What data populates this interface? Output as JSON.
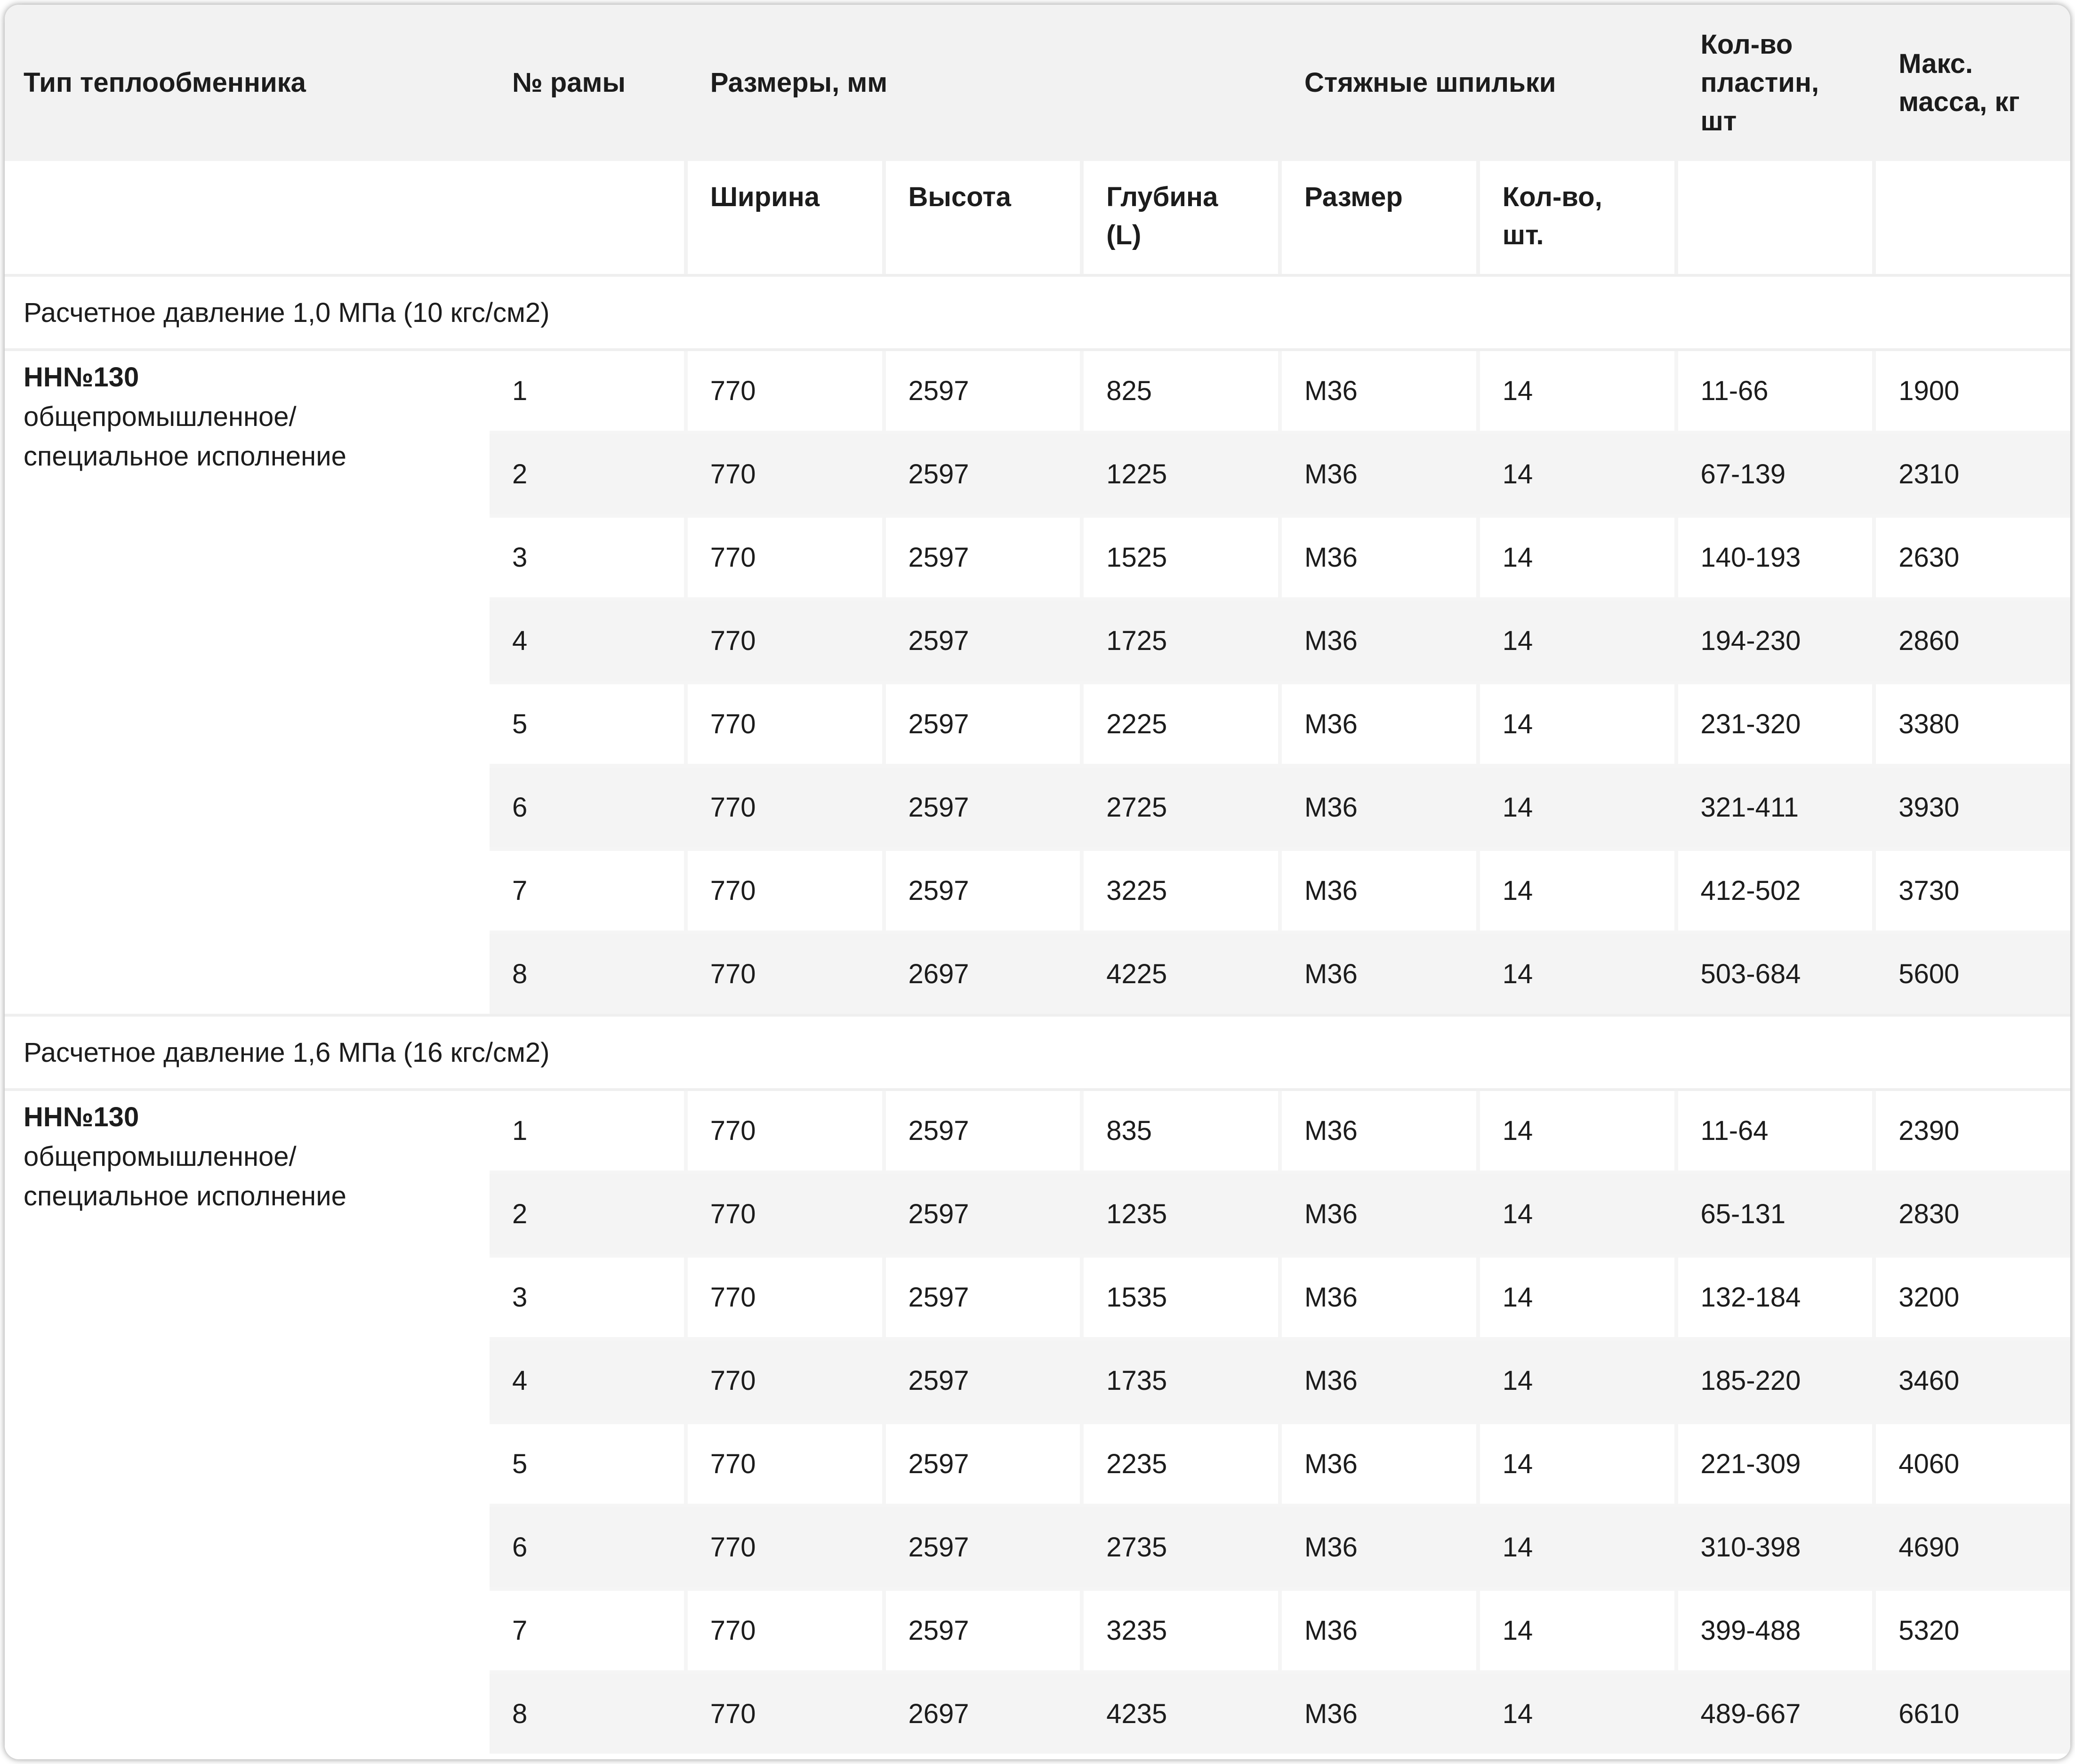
{
  "table": {
    "columns": {
      "type": "Тип теплообменника",
      "frame": "№ рамы",
      "dimensions_group": "Размеры, мм",
      "dim_width": "Ширина",
      "dim_height": "Высота",
      "dim_depth": "Глубина (L)",
      "studs_group": "Стяжные шпильки",
      "stud_size": "Размер",
      "stud_qty": "Кол-во, шт.",
      "plates": "Кол-во пластин, шт",
      "mass": "Макс. масса, кг"
    },
    "sections": [
      {
        "title": "Расчетное давление 1,0 МПа (10 кгс/см2)",
        "type_name": "НН№130",
        "type_description": "общепромышленное/\nспециальное исполнение",
        "rows": [
          [
            "1",
            "770",
            "2597",
            "825",
            "М36",
            "14",
            "11-66",
            "1900"
          ],
          [
            "2",
            "770",
            "2597",
            "1225",
            "М36",
            "14",
            "67-139",
            "2310"
          ],
          [
            "3",
            "770",
            "2597",
            "1525",
            "М36",
            "14",
            "140-193",
            "2630"
          ],
          [
            "4",
            "770",
            "2597",
            "1725",
            "М36",
            "14",
            "194-230",
            "2860"
          ],
          [
            "5",
            "770",
            "2597",
            "2225",
            "М36",
            "14",
            "231-320",
            "3380"
          ],
          [
            "6",
            "770",
            "2597",
            "2725",
            "М36",
            "14",
            "321-411",
            "3930"
          ],
          [
            "7",
            "770",
            "2597",
            "3225",
            "М36",
            "14",
            "412-502",
            "3730"
          ],
          [
            "8",
            "770",
            "2697",
            "4225",
            "М36",
            "14",
            "503-684",
            "5600"
          ]
        ]
      },
      {
        "title": "Расчетное давление 1,6 МПа (16 кгс/см2)",
        "type_name": "НН№130",
        "type_description": " общепромышленное/\nспециальное исполнение",
        "rows": [
          [
            "1",
            "770",
            "2597",
            "835",
            "М36",
            "14",
            "11-64",
            "2390"
          ],
          [
            "2",
            "770",
            "2597",
            "1235",
            "М36",
            "14",
            "65-131",
            "2830"
          ],
          [
            "3",
            "770",
            "2597",
            "1535",
            "М36",
            "14",
            "132-184",
            "3200"
          ],
          [
            "4",
            "770",
            "2597",
            "1735",
            "М36",
            "14",
            "185-220",
            "3460"
          ],
          [
            "5",
            "770",
            "2597",
            "2235",
            "М36",
            "14",
            "221-309",
            "4060"
          ],
          [
            "6",
            "770",
            "2597",
            "2735",
            "М36",
            "14",
            "310-398",
            "4690"
          ],
          [
            "7",
            "770",
            "2597",
            "3235",
            "М36",
            "14",
            "399-488",
            "5320"
          ],
          [
            "8",
            "770",
            "2697",
            "4235",
            "М36",
            "14",
            "489-667",
            "6610"
          ]
        ]
      }
    ],
    "colors": {
      "header_band": "#f2f2f2",
      "even_row": "#f4f4f4",
      "gap": "#f5f5f5",
      "separator": "#efefef"
    }
  }
}
